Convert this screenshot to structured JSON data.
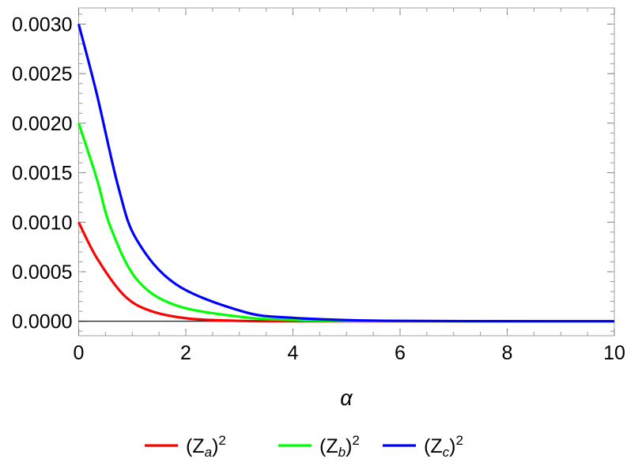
{
  "chart_data": {
    "type": "line",
    "xlabel": "α",
    "ylabel": "",
    "xlim": [
      0,
      10
    ],
    "ylim": [
      -0.00015,
      0.0032
    ],
    "x_ticks": [
      "0",
      "2",
      "4",
      "6",
      "8",
      "10"
    ],
    "x_tick_values": [
      0,
      2,
      4,
      6,
      8,
      10
    ],
    "y_ticks": [
      "0.0000",
      "0.0005",
      "0.0010",
      "0.0015",
      "0.0020",
      "0.0025",
      "0.0030"
    ],
    "y_tick_values": [
      0,
      0.0005,
      0.001,
      0.0015,
      0.002,
      0.0025,
      0.003
    ],
    "grid": false,
    "legend": "bottom",
    "series": [
      {
        "name": "(Z_a)^2",
        "label_base": "(Z",
        "label_sub": "a",
        "label_close": ")",
        "label_sup": "2",
        "color": "#ff0000",
        "x": [
          0,
          0.34,
          0.84,
          1.33,
          2.06,
          3.1,
          4,
          6,
          8,
          10
        ],
        "y": [
          0.001,
          0.000638,
          0.000266,
          0.000107,
          2.7e-05,
          3e-06,
          5e-07,
          0,
          0,
          0
        ]
      },
      {
        "name": "(Z_b)^2",
        "label_base": "(Z",
        "label_sub": "b",
        "label_close": ")",
        "label_sup": "2",
        "color": "#00ff00",
        "x": [
          0,
          0.34,
          0.59,
          1.08,
          1.82,
          3.1,
          4,
          5,
          6,
          8,
          10
        ],
        "y": [
          0.002,
          0.001435,
          0.000957,
          0.000426,
          0.00016,
          4e-05,
          1.3e-05,
          4e-06,
          1.3e-06,
          1e-07,
          0
        ]
      },
      {
        "name": "(Z_c)^2",
        "label_base": "(Z",
        "label_sub": "c",
        "label_close": ")",
        "label_sup": "2",
        "color": "#0000ff",
        "x": [
          0,
          0.34,
          0.74,
          1.08,
          1.82,
          3.1,
          4,
          5,
          6,
          8,
          10
        ],
        "y": [
          0.003,
          0.00229,
          0.001356,
          0.000825,
          0.000372,
          9.3e-05,
          3.5e-05,
          1.2e-05,
          4e-06,
          5e-07,
          5e-08
        ]
      }
    ]
  }
}
